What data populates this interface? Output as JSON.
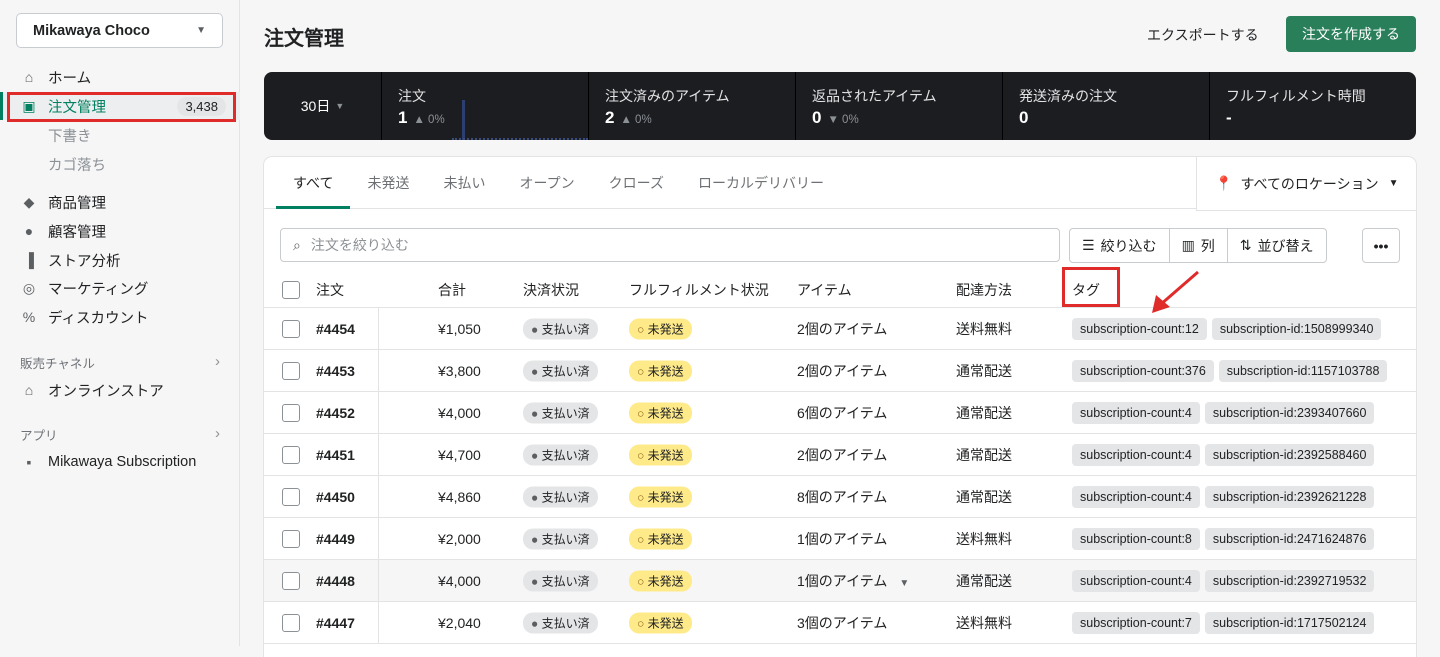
{
  "sidebar": {
    "store": "Mikawaya Choco",
    "items": [
      {
        "label": "ホーム",
        "icon": "home-icon"
      },
      {
        "label": "注文管理",
        "icon": "orders-icon",
        "badge": "3,438",
        "active": true
      },
      {
        "label": "下書き"
      },
      {
        "label": "カゴ落ち"
      },
      {
        "label": "商品管理",
        "icon": "tag-icon"
      },
      {
        "label": "顧客管理",
        "icon": "person-icon"
      },
      {
        "label": "ストア分析",
        "icon": "bar-chart-icon"
      },
      {
        "label": "マーケティング",
        "icon": "marketing-icon"
      },
      {
        "label": "ディスカウント",
        "icon": "discount-icon"
      }
    ],
    "sales_channels": "販売チャネル",
    "online_store": "オンラインストア",
    "apps": "アプリ",
    "app_item": "Mikawaya Subscription"
  },
  "header": {
    "title": "注文管理",
    "export": "エクスポートする",
    "create": "注文を作成する"
  },
  "stats": {
    "period": "30日",
    "items": [
      {
        "label": "注文",
        "value": "1",
        "change": "0%",
        "dir": "up"
      },
      {
        "label": "注文済みのアイテム",
        "value": "2",
        "change": "0%",
        "dir": "up"
      },
      {
        "label": "返品されたアイテム",
        "value": "0",
        "change": "0%",
        "dir": "down"
      },
      {
        "label": "発送済みの注文",
        "value": "0",
        "change": ""
      },
      {
        "label": "フルフィルメント時間",
        "value": "-",
        "change": ""
      }
    ]
  },
  "tabs": [
    "すべて",
    "未発送",
    "未払い",
    "オープン",
    "クローズ",
    "ローカルデリバリー"
  ],
  "location": "すべてのロケーション",
  "search_placeholder": "注文を絞り込む",
  "buttons": {
    "filter": "絞り込む",
    "columns": "列",
    "sort": "並び替え"
  },
  "columns": {
    "order": "注文",
    "total": "合計",
    "payment": "決済状況",
    "fulfillment": "フルフィルメント状況",
    "items": "アイテム",
    "delivery": "配達方法",
    "tags": "タグ"
  },
  "orders": [
    {
      "id": "#4454",
      "total": "¥1,050",
      "payment": "支払い済",
      "fulfillment": "未発送",
      "items": "2個のアイテム",
      "delivery": "送料無料",
      "tags": [
        "subscription-count:12",
        "subscription-id:1508999340"
      ]
    },
    {
      "id": "#4453",
      "total": "¥3,800",
      "payment": "支払い済",
      "fulfillment": "未発送",
      "items": "2個のアイテム",
      "delivery": "通常配送",
      "tags": [
        "subscription-count:376",
        "subscription-id:1157103788"
      ]
    },
    {
      "id": "#4452",
      "total": "¥4,000",
      "payment": "支払い済",
      "fulfillment": "未発送",
      "items": "6個のアイテム",
      "delivery": "通常配送",
      "tags": [
        "subscription-count:4",
        "subscription-id:2393407660"
      ]
    },
    {
      "id": "#4451",
      "total": "¥4,700",
      "payment": "支払い済",
      "fulfillment": "未発送",
      "items": "2個のアイテム",
      "delivery": "通常配送",
      "tags": [
        "subscription-count:4",
        "subscription-id:2392588460"
      ]
    },
    {
      "id": "#4450",
      "total": "¥4,860",
      "payment": "支払い済",
      "fulfillment": "未発送",
      "items": "8個のアイテム",
      "delivery": "通常配送",
      "tags": [
        "subscription-count:4",
        "subscription-id:2392621228"
      ]
    },
    {
      "id": "#4449",
      "total": "¥2,000",
      "payment": "支払い済",
      "fulfillment": "未発送",
      "items": "1個のアイテム",
      "delivery": "送料無料",
      "tags": [
        "subscription-count:8",
        "subscription-id:2471624876"
      ]
    },
    {
      "id": "#4448",
      "total": "¥4,000",
      "payment": "支払い済",
      "fulfillment": "未発送",
      "items": "1個のアイテム",
      "delivery": "通常配送",
      "tags": [
        "subscription-count:4",
        "subscription-id:2392719532"
      ],
      "hovered": true
    },
    {
      "id": "#4447",
      "total": "¥2,040",
      "payment": "支払い済",
      "fulfillment": "未発送",
      "items": "3個のアイテム",
      "delivery": "送料無料",
      "tags": [
        "subscription-count:7",
        "subscription-id:1717502124"
      ]
    }
  ],
  "colors": {
    "accent": "#008060",
    "primary_button": "#2a7f5b",
    "highlight": "#e02b2b",
    "unfulfilled": "#ffea8a"
  }
}
